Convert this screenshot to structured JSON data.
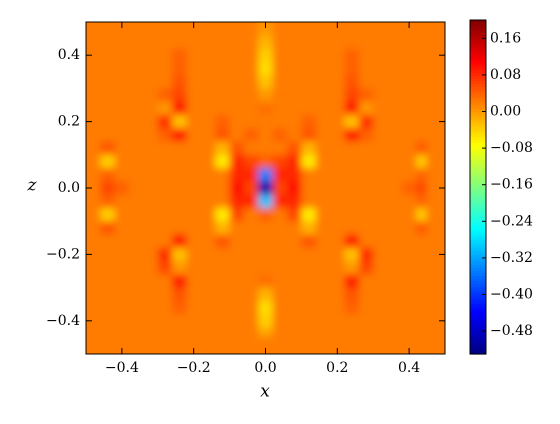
{
  "chart_data": {
    "type": "heatmap",
    "colormap": "jet",
    "x_label": "x",
    "y_label": "z",
    "xlim": [
      -0.5,
      0.5
    ],
    "ylim": [
      -0.5,
      0.5
    ],
    "clim": [
      -0.53,
      0.2
    ],
    "xticks": [
      {
        "value": -0.4,
        "label": "−0.4"
      },
      {
        "value": -0.2,
        "label": "−0.2"
      },
      {
        "value": 0,
        "label": "0.0"
      },
      {
        "value": 0.2,
        "label": "0.2"
      },
      {
        "value": 0.4,
        "label": "0.4"
      }
    ],
    "yticks": [
      {
        "value": -0.4,
        "label": "−0.4"
      },
      {
        "value": -0.2,
        "label": "−0.2"
      },
      {
        "value": 0,
        "label": "0.0"
      },
      {
        "value": 0.2,
        "label": "0.2"
      },
      {
        "value": 0.4,
        "label": "0.4"
      }
    ],
    "cticks": [
      0.16,
      0.08,
      {
        "value": 0,
        "label": "0.00"
      },
      {
        "value": -0.08,
        "label": "−0.08"
      },
      {
        "value": -0.16,
        "label": "−0.16"
      },
      {
        "value": -0.24,
        "label": "−0.24"
      },
      {
        "value": -0.32,
        "label": "−0.32"
      },
      {
        "value": -0.4,
        "label": "−0.40"
      },
      {
        "value": -0.48,
        "label": "−0.48"
      }
    ],
    "x": [
      -0.48,
      -0.44,
      -0.4,
      -0.36,
      -0.32,
      -0.28,
      -0.24,
      -0.2,
      -0.16,
      -0.12,
      -0.08,
      -0.04,
      0,
      0.04,
      0.08,
      0.12,
      0.16,
      0.2,
      0.24,
      0.28,
      0.32,
      0.36,
      0.4,
      0.44,
      0.48
    ],
    "y": [
      0.48,
      0.44,
      0.4,
      0.36,
      0.32,
      0.28,
      0.24,
      0.2,
      0.16,
      0.12,
      0.08,
      0.04,
      0,
      -0.04,
      -0.08,
      -0.12,
      -0.16,
      -0.2,
      -0.24,
      -0.28,
      -0.32,
      -0.36,
      -0.4,
      -0.44,
      -0.48
    ],
    "values": [
      [
        0.02,
        0.02,
        0.02,
        0.02,
        0.02,
        0.02,
        0.02,
        0.02,
        0.02,
        0.02,
        0.02,
        0.02,
        0,
        0.02,
        0.02,
        0.02,
        0.02,
        0.02,
        0.02,
        0.02,
        0.02,
        0.02,
        0.02,
        0.02,
        0.02
      ],
      [
        0.02,
        0.02,
        0.02,
        0.02,
        0.02,
        0.02,
        0.02,
        0.02,
        0.02,
        0.02,
        0.02,
        0.02,
        -0.02,
        0.02,
        0.02,
        0.02,
        0.02,
        0.02,
        0.02,
        0.02,
        0.02,
        0.02,
        0.02,
        0.02,
        0.02
      ],
      [
        0.02,
        0.02,
        0.02,
        0.02,
        0.02,
        0.02,
        0.04,
        0.02,
        0.02,
        0.02,
        0.02,
        0.02,
        -0.04,
        0.02,
        0.02,
        0.02,
        0.02,
        0.02,
        0.04,
        0.02,
        0.02,
        0.02,
        0.02,
        0.02,
        0.02
      ],
      [
        0.02,
        0.02,
        0.02,
        0.02,
        0.02,
        0.02,
        0.04,
        0.02,
        0.02,
        0.02,
        0.02,
        0.02,
        -0.05,
        0.02,
        0.02,
        0.02,
        0.02,
        0.02,
        0.04,
        0.02,
        0.02,
        0.02,
        0.02,
        0.02,
        0.02
      ],
      [
        0.02,
        0.02,
        0.02,
        0.02,
        0.02,
        0.02,
        0.05,
        0.02,
        0.02,
        0.02,
        0.02,
        0.02,
        -0.03,
        0.02,
        0.02,
        0.02,
        0.02,
        0.02,
        0.05,
        0.02,
        0.02,
        0.02,
        0.02,
        0.02,
        0.02
      ],
      [
        0.02,
        0.02,
        0.02,
        0.02,
        0.02,
        0.04,
        0.06,
        0.02,
        0.02,
        0.02,
        0.02,
        0.02,
        0,
        0.02,
        0.02,
        0.02,
        0.02,
        0.02,
        0.06,
        0.04,
        0.02,
        0.02,
        0.02,
        0.02,
        0.02
      ],
      [
        0.02,
        0.02,
        0.02,
        0.02,
        0.02,
        0,
        0.1,
        0.02,
        0.02,
        0.02,
        0.02,
        0.02,
        0.03,
        0.02,
        0.02,
        0.02,
        0.02,
        0.02,
        0.1,
        0,
        0.02,
        0.02,
        0.02,
        0.02,
        0.02
      ],
      [
        0.02,
        0.02,
        0.02,
        0.02,
        0.02,
        0.08,
        -0.03,
        0.02,
        0.02,
        0.04,
        0.02,
        0.02,
        0.02,
        0.02,
        0.02,
        0.04,
        0.02,
        0.02,
        -0.03,
        0.08,
        0.02,
        0.02,
        0.02,
        0.02,
        0.02
      ],
      [
        0.02,
        0.02,
        0.02,
        0.02,
        0.02,
        0.04,
        0.1,
        0.02,
        0.02,
        0.05,
        0.02,
        0.04,
        0.02,
        0.04,
        0.02,
        0.05,
        0.02,
        0.02,
        0.1,
        0.04,
        0.02,
        0.02,
        0.02,
        0.02,
        0.02
      ],
      [
        0.02,
        0.05,
        0.02,
        0.02,
        0.02,
        0.02,
        0.02,
        0.02,
        0.02,
        -0.02,
        0.05,
        0.02,
        0.02,
        0.02,
        0.05,
        -0.02,
        0.02,
        0.02,
        0.02,
        0.02,
        0.02,
        0.02,
        0.02,
        0.05,
        0.02
      ],
      [
        0.02,
        -0.04,
        0.02,
        0.02,
        0.02,
        0.02,
        0.02,
        0.02,
        0.02,
        -0.06,
        0.08,
        0.06,
        0.04,
        0.06,
        0.08,
        -0.06,
        0.02,
        0.02,
        0.02,
        0.02,
        0.02,
        0.02,
        0.02,
        -0.04,
        0.02
      ],
      [
        0.02,
        0.04,
        0.02,
        0.02,
        0.02,
        0.02,
        0.02,
        0.02,
        0.02,
        0.02,
        0.08,
        0.08,
        -0.35,
        0.08,
        0.08,
        0.02,
        0.02,
        0.02,
        0.02,
        0.02,
        0.02,
        0.02,
        0.02,
        0.04,
        0.02
      ],
      [
        0.02,
        0.06,
        0.04,
        0.02,
        0.02,
        0.02,
        0.02,
        0.02,
        0.02,
        0.02,
        0.1,
        0.06,
        -0.5,
        0.06,
        0.1,
        0.02,
        0.02,
        0.02,
        0.02,
        0.02,
        0.02,
        0.02,
        0.04,
        0.06,
        0.02
      ],
      [
        0.02,
        0.04,
        0.02,
        0.02,
        0.02,
        0.02,
        0.02,
        0.02,
        0.02,
        0.02,
        0.08,
        0.08,
        -0.3,
        0.08,
        0.08,
        0.02,
        0.02,
        0.02,
        0.02,
        0.02,
        0.02,
        0.02,
        0.02,
        0.04,
        0.02
      ],
      [
        0.02,
        -0.04,
        0.02,
        0.02,
        0.02,
        0.02,
        0.02,
        0.02,
        0.02,
        -0.06,
        0.06,
        0.02,
        0.04,
        0.02,
        0.06,
        -0.06,
        0.02,
        0.02,
        0.02,
        0.02,
        0.02,
        0.02,
        0.02,
        -0.04,
        0.02
      ],
      [
        0.02,
        0.05,
        0.02,
        0.02,
        0.02,
        0.02,
        0.02,
        0.02,
        0.02,
        -0.02,
        0.02,
        0.02,
        0.02,
        0.02,
        0.02,
        -0.02,
        0.02,
        0.02,
        0.02,
        0.02,
        0.02,
        0.02,
        0.02,
        0.05,
        0.02
      ],
      [
        0.02,
        0.02,
        0.02,
        0.02,
        0.02,
        0.02,
        0.1,
        0.02,
        0.02,
        0.05,
        0.02,
        0.02,
        0.02,
        0.02,
        0.02,
        0.05,
        0.02,
        0.02,
        0.1,
        0.02,
        0.02,
        0.02,
        0.02,
        0.02,
        0.02
      ],
      [
        0.02,
        0.02,
        0.02,
        0.02,
        0.02,
        0.08,
        -0.03,
        0.02,
        0.02,
        0.02,
        0.02,
        0.02,
        0.02,
        0.02,
        0.02,
        0.02,
        0.02,
        0.02,
        -0.03,
        0.08,
        0.02,
        0.02,
        0.02,
        0.02,
        0.02
      ],
      [
        0.02,
        0.02,
        0.02,
        0.02,
        0.02,
        0.06,
        0,
        0.02,
        0.02,
        0.02,
        0.02,
        0.02,
        0.02,
        0.02,
        0.02,
        0.02,
        0.02,
        0.02,
        0,
        0.06,
        0.02,
        0.02,
        0.02,
        0.02,
        0.02
      ],
      [
        0.02,
        0.02,
        0.02,
        0.02,
        0.02,
        0.02,
        0.1,
        0.02,
        0.02,
        0.02,
        0.02,
        0.02,
        0.03,
        0.02,
        0.02,
        0.02,
        0.02,
        0.02,
        0.1,
        0.02,
        0.02,
        0.02,
        0.02,
        0.02,
        0.02
      ],
      [
        0.02,
        0.02,
        0.02,
        0.02,
        0.02,
        0.02,
        0.05,
        0.02,
        0.02,
        0.02,
        0.02,
        0.02,
        -0.02,
        0.02,
        0.02,
        0.02,
        0.02,
        0.02,
        0.05,
        0.02,
        0.02,
        0.02,
        0.02,
        0.02,
        0.02
      ],
      [
        0.02,
        0.02,
        0.02,
        0.02,
        0.02,
        0.02,
        0.04,
        0.02,
        0.02,
        0.02,
        0.02,
        0.02,
        -0.05,
        0.02,
        0.02,
        0.02,
        0.02,
        0.02,
        0.04,
        0.02,
        0.02,
        0.02,
        0.02,
        0.02,
        0.02
      ],
      [
        0.02,
        0.02,
        0.02,
        0.02,
        0.02,
        0.02,
        0.02,
        0.02,
        0.02,
        0.02,
        0.02,
        0.02,
        -0.04,
        0.02,
        0.02,
        0.02,
        0.02,
        0.02,
        0.02,
        0.02,
        0.02,
        0.02,
        0.02,
        0.02,
        0.02
      ],
      [
        0.02,
        0.02,
        0.02,
        0.02,
        0.02,
        0.02,
        0.02,
        0.02,
        0.02,
        0.02,
        0.02,
        0.02,
        -0.01,
        0.02,
        0.02,
        0.02,
        0.02,
        0.02,
        0.02,
        0.02,
        0.02,
        0.02,
        0.02,
        0.02,
        0.02
      ],
      [
        0.02,
        0.02,
        0.02,
        0.02,
        0.02,
        0.02,
        0.02,
        0.02,
        0.02,
        0.02,
        0.02,
        0.02,
        0.02,
        0.02,
        0.02,
        0.02,
        0.02,
        0.02,
        0.02,
        0.02,
        0.02,
        0.02,
        0.02,
        0.02,
        0.02
      ]
    ]
  }
}
